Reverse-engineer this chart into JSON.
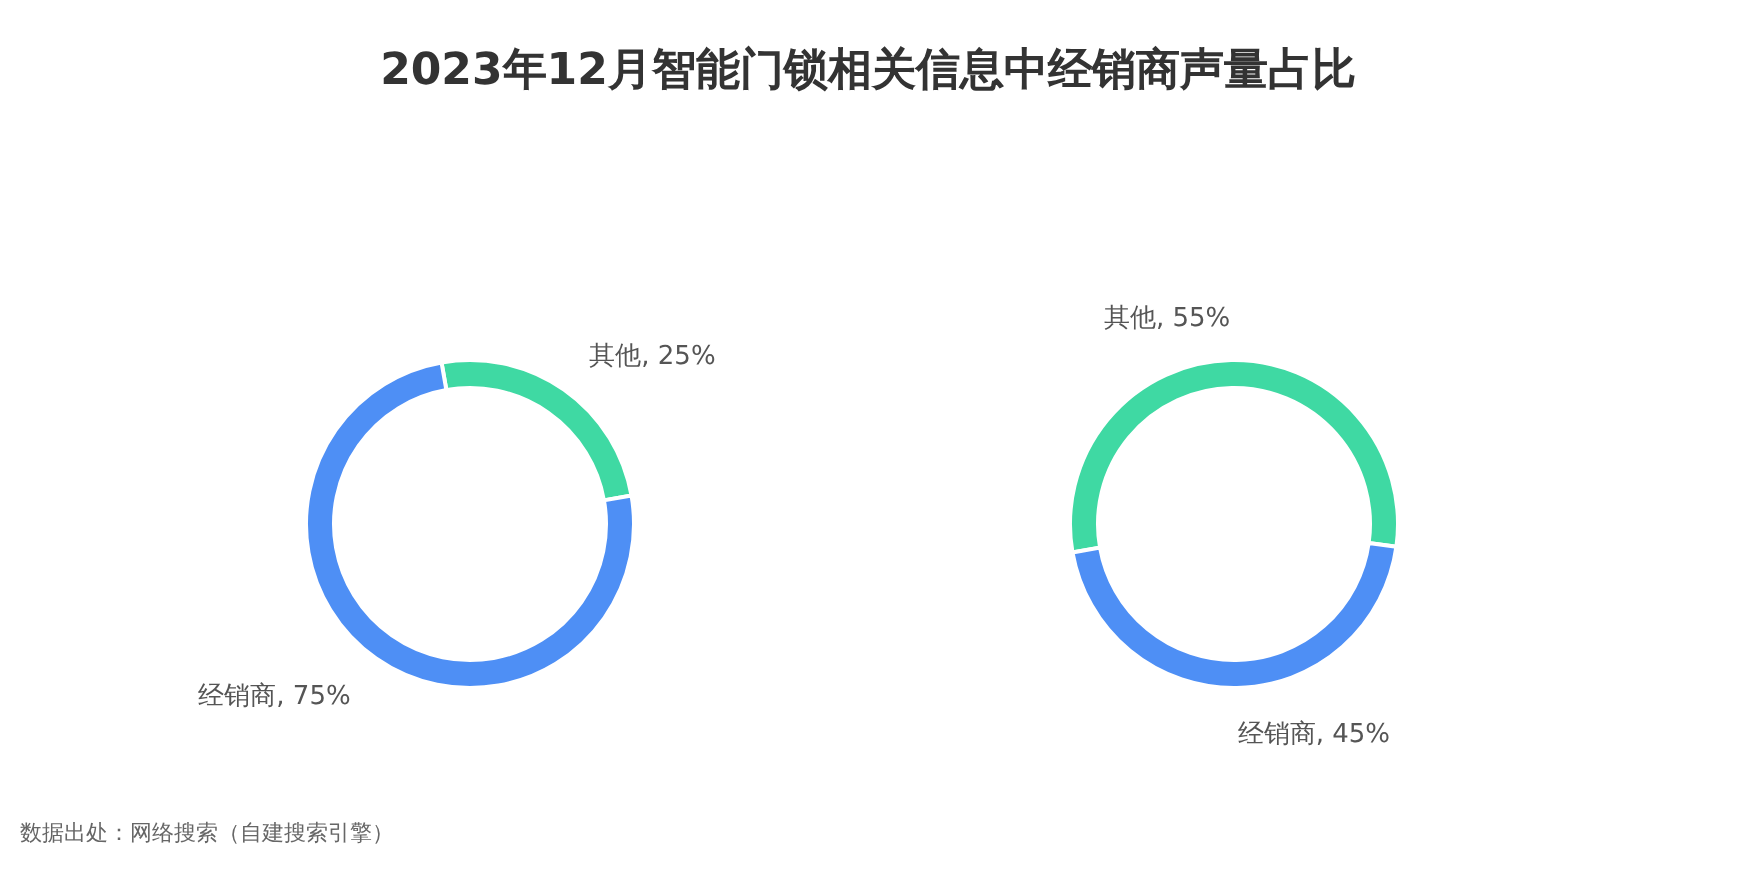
{
  "chart_data": [
    {
      "type": "donut",
      "title": "2023年12月智能门锁相关信息中经销商声量占比",
      "categories": [
        "其他",
        "经销商"
      ],
      "values": [
        25,
        75
      ],
      "value_labels": [
        "25%",
        "75%"
      ],
      "colors": [
        "#3fd9a3",
        "#4e8ff5"
      ],
      "annotations": [
        "数据出处：网络搜索（自建搜索引擎）"
      ]
    },
    {
      "type": "donut",
      "categories": [
        "其他",
        "经销商"
      ],
      "values": [
        55,
        45
      ],
      "value_labels": [
        "55%",
        "45%"
      ],
      "colors": [
        "#3fd9a3",
        "#4e8ff5"
      ]
    }
  ]
}
